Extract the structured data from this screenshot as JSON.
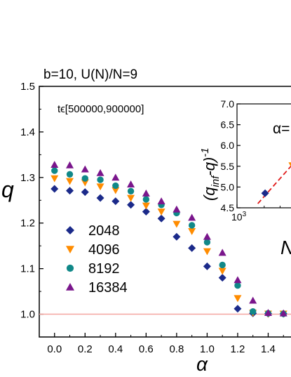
{
  "chart_data": [
    {
      "type": "scatter",
      "title": "b=10, U(N)/N=9",
      "annotation": "tϵ[500000,900000]",
      "xlabel": "α",
      "ylabel": "q",
      "xlim": [
        -0.1,
        1.6
      ],
      "ylim": [
        0.95,
        1.5
      ],
      "xticks": [
        "0.0",
        "0.2",
        "0.4",
        "0.6",
        "0.8",
        "1.0",
        "1.2",
        "1.4"
      ],
      "yticks": [
        "1.0",
        "1.1",
        "1.2",
        "1.3",
        "1.4",
        "1.5"
      ],
      "reference_line": {
        "y": 1.0,
        "color": "#f4a6a0"
      },
      "legend_position": "lower-left",
      "series": [
        {
          "name": "2048",
          "marker": "diamond",
          "color": "#1b2a8a",
          "x": [
            0.0,
            0.1,
            0.2,
            0.3,
            0.4,
            0.5,
            0.6,
            0.7,
            0.8,
            0.9,
            1.0,
            1.1,
            1.2,
            1.3,
            1.4,
            1.5
          ],
          "y": [
            1.275,
            1.271,
            1.268,
            1.255,
            1.248,
            1.24,
            1.225,
            1.21,
            1.17,
            1.145,
            1.105,
            1.08,
            1.012,
            1.002,
            1.001,
            1.001
          ]
        },
        {
          "name": "4096",
          "marker": "triangle-down",
          "color": "#ff8c00",
          "x": [
            0.0,
            0.1,
            0.2,
            0.3,
            0.4,
            0.5,
            0.6,
            0.7,
            0.8,
            0.9,
            1.0,
            1.1,
            1.2,
            1.3,
            1.4,
            1.5
          ],
          "y": [
            1.298,
            1.292,
            1.289,
            1.28,
            1.272,
            1.255,
            1.238,
            1.225,
            1.198,
            1.182,
            1.138,
            1.095,
            1.035,
            1.003,
            1.001,
            1.001
          ]
        },
        {
          "name": "8192",
          "marker": "circle",
          "color": "#108888",
          "x": [
            0.0,
            0.1,
            0.2,
            0.3,
            0.4,
            0.5,
            0.6,
            0.7,
            0.8,
            0.9,
            1.0,
            1.1,
            1.2,
            1.3,
            1.4,
            1.5
          ],
          "y": [
            1.315,
            1.307,
            1.298,
            1.295,
            1.282,
            1.27,
            1.252,
            1.24,
            1.222,
            1.195,
            1.158,
            1.108,
            1.063,
            1.006,
            1.002,
            1.001
          ]
        },
        {
          "name": "16384",
          "marker": "triangle-up",
          "color": "#7a168c",
          "x": [
            0.0,
            0.1,
            0.2,
            0.3,
            0.4,
            0.5,
            0.6,
            0.7,
            0.8,
            0.9,
            1.0,
            1.1,
            1.2,
            1.3,
            1.4,
            1.5
          ],
          "y": [
            1.328,
            1.327,
            1.318,
            1.31,
            1.3,
            1.285,
            1.265,
            1.248,
            1.23,
            1.212,
            1.17,
            1.135,
            1.075,
            1.03,
            1.003,
            1.002
          ]
        }
      ]
    },
    {
      "type": "scatter",
      "title": "α=",
      "xlabel": "N",
      "ylabel": "(q_inf −q)^−1",
      "xscale": "log",
      "xlim": [
        1000,
        5000
      ],
      "ylim": [
        4.5,
        7.0
      ],
      "xtick_label": "10",
      "xtick_exponent": "3",
      "yticks": [
        "4.5",
        "5.0",
        "5.5",
        "6.0",
        "6.5",
        "7.0"
      ],
      "series": [
        {
          "name": "2048",
          "marker": "diamond",
          "color": "#1b2a8a",
          "x": [
            2048
          ],
          "y": [
            4.85
          ]
        },
        {
          "name": "4096",
          "marker": "triangle-down",
          "color": "#ff8c00",
          "x": [
            4096
          ],
          "y": [
            5.52
          ]
        }
      ],
      "fit_line": {
        "color": "#e01818",
        "style": "dashed",
        "x": [
          1700,
          5000
        ],
        "y": [
          4.6,
          5.75
        ]
      }
    }
  ]
}
